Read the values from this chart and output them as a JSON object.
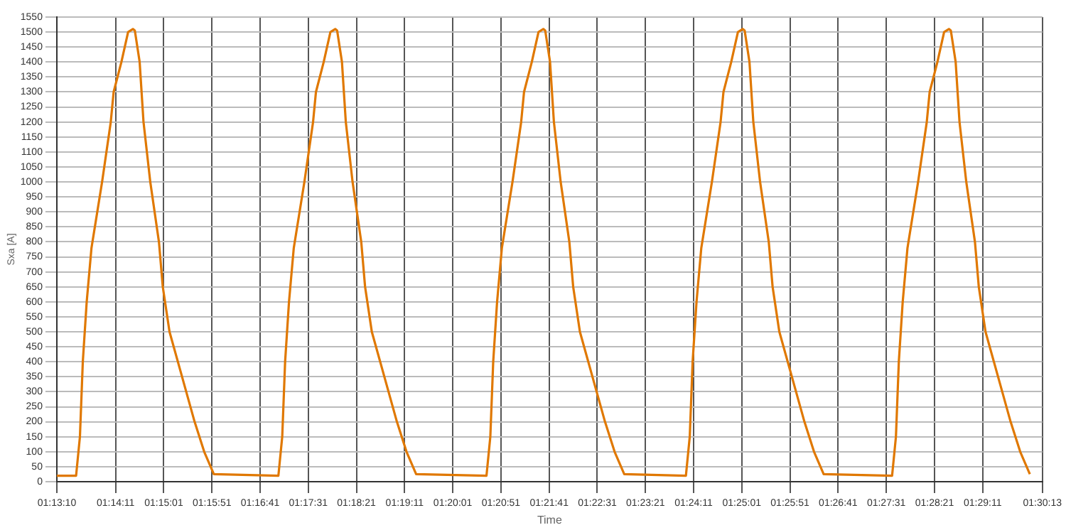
{
  "chart_data": {
    "type": "line",
    "xlabel": "Time",
    "ylabel": "Sxa [A]",
    "grid": true,
    "legend": false,
    "marker": "none",
    "line_style": "solid",
    "xlim": [
      1.219444,
      1.503611
    ],
    "xticks": [
      {
        "value": 1.219444,
        "label": "01:13:10"
      },
      {
        "value": 1.236389,
        "label": "01:14:11"
      },
      {
        "value": 1.250278,
        "label": "01:15:01"
      },
      {
        "value": 1.264167,
        "label": "01:15:51"
      },
      {
        "value": 1.278056,
        "label": "01:16:41"
      },
      {
        "value": 1.291944,
        "label": "01:17:31"
      },
      {
        "value": 1.305833,
        "label": "01:18:21"
      },
      {
        "value": 1.319722,
        "label": "01:19:11"
      },
      {
        "value": 1.333611,
        "label": "01:20:01"
      },
      {
        "value": 1.3475,
        "label": "01:20:51"
      },
      {
        "value": 1.361389,
        "label": "01:21:41"
      },
      {
        "value": 1.375278,
        "label": "01:22:31"
      },
      {
        "value": 1.389167,
        "label": "01:23:21"
      },
      {
        "value": 1.403056,
        "label": "01:24:11"
      },
      {
        "value": 1.416944,
        "label": "01:25:01"
      },
      {
        "value": 1.430833,
        "label": "01:25:51"
      },
      {
        "value": 1.444722,
        "label": "01:26:41"
      },
      {
        "value": 1.458611,
        "label": "01:27:31"
      },
      {
        "value": 1.4725,
        "label": "01:28:21"
      },
      {
        "value": 1.486389,
        "label": "01:29:11"
      },
      {
        "value": 1.503611,
        "label": "01:30:13"
      }
    ],
    "ylim": [
      0,
      1550
    ],
    "yticks": [
      0,
      50,
      100,
      150,
      200,
      250,
      300,
      350,
      400,
      450,
      500,
      550,
      600,
      650,
      700,
      750,
      800,
      850,
      900,
      950,
      1000,
      1050,
      1100,
      1150,
      1200,
      1250,
      1300,
      1350,
      1400,
      1450,
      1500,
      1550
    ],
    "series": [
      {
        "color": "#e07800",
        "x": [
          1.219444,
          1.225,
          1.22611,
          1.22694,
          1.22806,
          1.22944,
          1.2325,
          1.235,
          1.23583,
          1.23806,
          1.24,
          1.24139,
          1.24194,
          1.24333,
          1.24444,
          1.24639,
          1.24889,
          1.25,
          1.25194,
          1.25556,
          1.25917,
          1.26194,
          1.26472,
          1.28333,
          1.28444,
          1.28527,
          1.28639,
          1.28777,
          1.29083,
          1.29333,
          1.29416,
          1.29639,
          1.29833,
          1.29972,
          1.30027,
          1.30166,
          1.30277,
          1.30472,
          1.30722,
          1.30833,
          1.31027,
          1.31389,
          1.3175,
          1.32027,
          1.32305,
          1.34333,
          1.34444,
          1.34527,
          1.34639,
          1.34777,
          1.35083,
          1.35333,
          1.35416,
          1.35639,
          1.35833,
          1.35972,
          1.36027,
          1.36166,
          1.36277,
          1.36472,
          1.36722,
          1.36833,
          1.37027,
          1.37389,
          1.3775,
          1.38027,
          1.38305,
          1.40083,
          1.40194,
          1.40277,
          1.40389,
          1.40527,
          1.40833,
          1.41083,
          1.41166,
          1.41389,
          1.41583,
          1.41722,
          1.41777,
          1.41916,
          1.42027,
          1.42222,
          1.42472,
          1.42583,
          1.42777,
          1.43139,
          1.435,
          1.43777,
          1.44055,
          1.46028,
          1.46139,
          1.46222,
          1.46334,
          1.46472,
          1.46778,
          1.47028,
          1.47111,
          1.47334,
          1.47528,
          1.47667,
          1.47722,
          1.47861,
          1.47972,
          1.48167,
          1.48417,
          1.48528,
          1.48722,
          1.49084,
          1.49445,
          1.49722,
          1.5
        ],
        "values": [
          20,
          20,
          150,
          400,
          600,
          780,
          1000,
          1200,
          1300,
          1400,
          1500,
          1510,
          1505,
          1400,
          1200,
          1000,
          800,
          650,
          500,
          350,
          200,
          100,
          25,
          20,
          150,
          400,
          600,
          780,
          1000,
          1200,
          1300,
          1400,
          1500,
          1510,
          1505,
          1400,
          1200,
          1000,
          800,
          650,
          500,
          350,
          200,
          100,
          25,
          20,
          150,
          400,
          600,
          780,
          1000,
          1200,
          1300,
          1400,
          1500,
          1510,
          1505,
          1400,
          1200,
          1000,
          800,
          650,
          500,
          350,
          200,
          100,
          25,
          20,
          150,
          400,
          600,
          780,
          1000,
          1200,
          1300,
          1400,
          1500,
          1510,
          1505,
          1400,
          1200,
          1000,
          800,
          650,
          500,
          350,
          200,
          100,
          25,
          20,
          150,
          400,
          600,
          780,
          1000,
          1200,
          1300,
          1400,
          1500,
          1510,
          1505,
          1400,
          1200,
          1000,
          800,
          650,
          500,
          350,
          200,
          100,
          25
        ]
      }
    ]
  }
}
